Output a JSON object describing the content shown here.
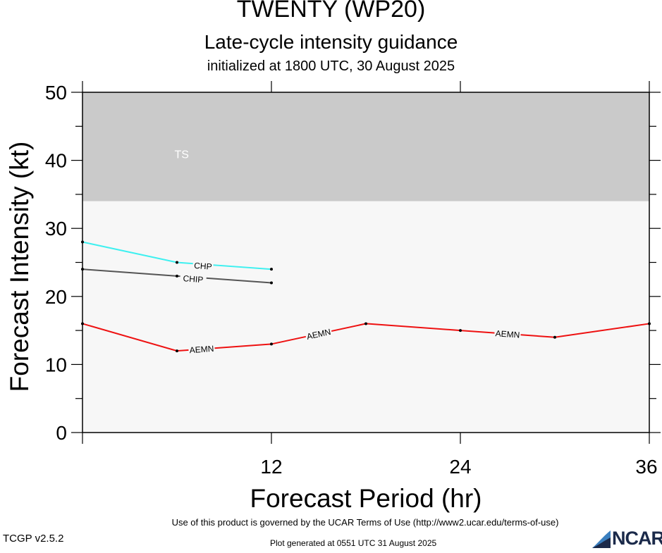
{
  "header": {
    "title": "TWENTY (WP20)",
    "subtitle": "Late-cycle intensity guidance",
    "initialized": "initialized at 1800 UTC, 30 August 2025"
  },
  "footer": {
    "terms": "Use of this product is governed by the UCAR Terms of Use (http://www2.ucar.edu/terms-of-use)",
    "version": "TCGP v2.5.2",
    "generated": "Plot generated at 0551 UTC   31 August 2025",
    "logo_text": "NCAR"
  },
  "chart_data": {
    "type": "line",
    "xlabel": "Forecast Period (hr)",
    "ylabel": "Forecast Intensity (kt)",
    "xlim": [
      0,
      36
    ],
    "ylim": [
      0,
      50
    ],
    "xticks": [
      12,
      24,
      36
    ],
    "yticks": [
      0,
      10,
      20,
      30,
      40,
      50
    ],
    "bands": [
      {
        "label": "TS",
        "from": 34,
        "to": 50,
        "color": "#cacaca"
      }
    ],
    "background_color": "#f7f7f7",
    "series": [
      {
        "name": "CHP",
        "color": "#3ef0f0",
        "x": [
          0,
          6,
          12
        ],
        "y": [
          28,
          25,
          24
        ]
      },
      {
        "name": "CHIP",
        "color": "#555555",
        "x": [
          0,
          6,
          12
        ],
        "y": [
          24,
          23,
          22
        ]
      },
      {
        "name": "AEMN",
        "color": "#ee1111",
        "x": [
          0,
          6,
          12,
          18,
          24,
          30,
          36
        ],
        "y": [
          16,
          12,
          13,
          16,
          15,
          14,
          16
        ]
      }
    ]
  }
}
